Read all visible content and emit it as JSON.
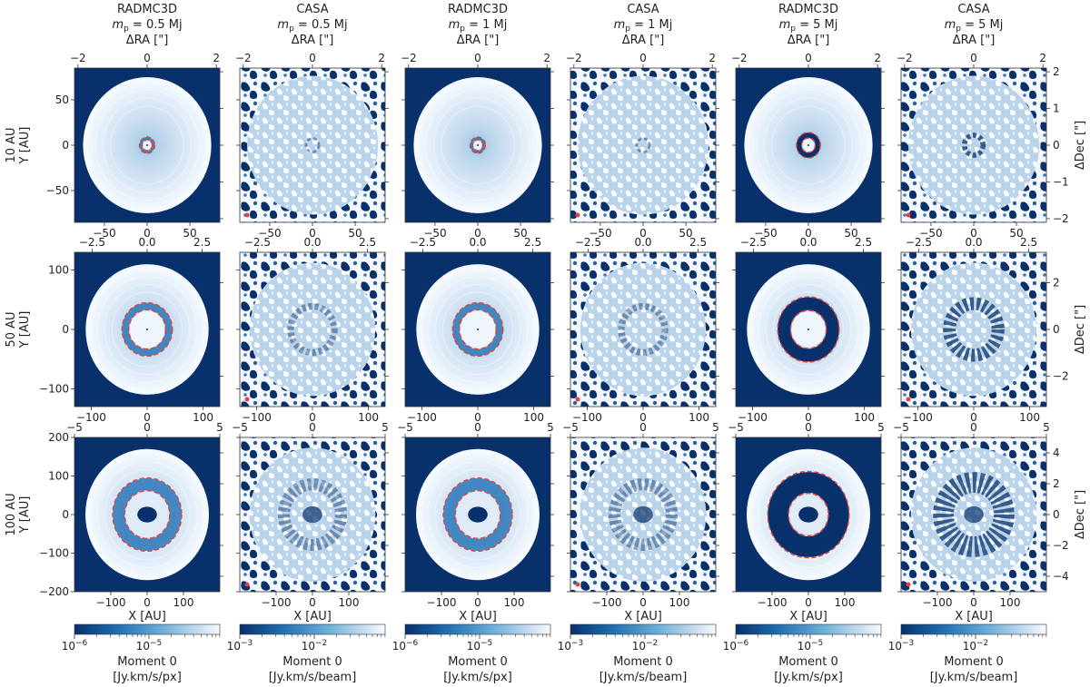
{
  "figure": {
    "colors": {
      "dark": "#08306b",
      "mid": "#2171b5",
      "light": "#c6dbef",
      "pale": "#f7fbff",
      "ring": "#e8413c"
    }
  },
  "columns": [
    {
      "code": "RADMC3D",
      "mass": "m_p = 0.5 Mj",
      "kind": "model",
      "colorbar_min": "10",
      "colorbar_min_exp": "−6",
      "colorbar_mid": "10",
      "colorbar_mid_exp": "−5",
      "colorbar_label": "Moment 0",
      "colorbar_unit": "[Jy.km/s/px]"
    },
    {
      "code": "CASA",
      "mass": "m_p = 0.5 Mj",
      "kind": "obs",
      "colorbar_min": "10",
      "colorbar_min_exp": "−3",
      "colorbar_mid": "10",
      "colorbar_mid_exp": "−2",
      "colorbar_label": "Moment 0",
      "colorbar_unit": "[Jy.km/s/beam]"
    },
    {
      "code": "RADMC3D",
      "mass": "m_p = 1 Mj",
      "kind": "model",
      "colorbar_min": "10",
      "colorbar_min_exp": "−6",
      "colorbar_mid": "10",
      "colorbar_mid_exp": "−5",
      "colorbar_label": "Moment 0",
      "colorbar_unit": "[Jy.km/s/px]"
    },
    {
      "code": "CASA",
      "mass": "m_p = 1 Mj",
      "kind": "obs",
      "colorbar_min": "10",
      "colorbar_min_exp": "−3",
      "colorbar_mid": "10",
      "colorbar_mid_exp": "−2",
      "colorbar_label": "Moment 0",
      "colorbar_unit": "[Jy.km/s/beam]"
    },
    {
      "code": "RADMC3D",
      "mass": "m_p = 5 Mj",
      "kind": "model",
      "colorbar_min": "10",
      "colorbar_min_exp": "−6",
      "colorbar_mid": "10",
      "colorbar_mid_exp": "−5",
      "colorbar_label": "Moment 0",
      "colorbar_unit": "[Jy.km/s/px]"
    },
    {
      "code": "CASA",
      "mass": "m_p = 5 Mj",
      "kind": "obs",
      "colorbar_min": "10",
      "colorbar_min_exp": "−3",
      "colorbar_mid": "10",
      "colorbar_mid_exp": "−2",
      "colorbar_label": "Moment 0",
      "colorbar_unit": "[Jy.km/s/beam]"
    }
  ],
  "rows": [
    {
      "label": "10 AU",
      "ylabel": "Y [AU]",
      "xlim_au": [
        -85,
        85
      ],
      "ylim_au": [
        -85,
        85
      ],
      "radec_lim_arcsec": [
        -2.1,
        2.1
      ],
      "x_ticks_au": [
        "−50",
        "0",
        "50"
      ],
      "y_ticks_au": [
        "50",
        "0",
        "−50"
      ],
      "radec_ticks": [
        "−2",
        "0",
        "2"
      ],
      "dec_ticks": [
        "2",
        "1",
        "0",
        "−1",
        "−2"
      ],
      "bottom_label": ""
    },
    {
      "label": "50 AU",
      "ylabel": "Y [AU]",
      "xlim_au": [
        -130,
        130
      ],
      "ylim_au": [
        -130,
        130
      ],
      "radec_lim_arcsec": [
        -3.3,
        3.3
      ],
      "x_ticks_au": [
        "−100",
        "0",
        "100"
      ],
      "y_ticks_au": [
        "100",
        "0",
        "−100"
      ],
      "radec_ticks": [
        "−2.5",
        "0.0",
        "2.5"
      ],
      "dec_ticks": [
        "2",
        "0",
        "−2"
      ],
      "bottom_label": ""
    },
    {
      "label": "100 AU",
      "ylabel": "Y [AU]",
      "xlim_au": [
        -200,
        200
      ],
      "ylim_au": [
        -200,
        200
      ],
      "radec_lim_arcsec": [
        -5,
        5
      ],
      "x_ticks_au": [
        "−100",
        "0",
        "100"
      ],
      "y_ticks_au": [
        "200",
        "100",
        "0",
        "−100",
        "−200"
      ],
      "radec_ticks": [
        "−5",
        "0",
        "5"
      ],
      "dec_ticks": [
        "4",
        "2",
        "0",
        "−2",
        "−4"
      ],
      "bottom_label": "X [AU]"
    }
  ],
  "axis_labels": {
    "top": "ΔRA [\"]",
    "right": "ΔDec [\"]"
  },
  "chart_data": {
    "type": "heatmap",
    "panels": 18,
    "grid": "3 rows × 6 columns",
    "rows": [
      "10 AU",
      "50 AU",
      "100 AU"
    ],
    "columns": [
      "RADMC3D m_p = 0.5 Mj",
      "CASA m_p = 0.5 Mj",
      "RADMC3D m_p = 1 Mj",
      "CASA m_p = 1 Mj",
      "RADMC3D m_p = 5 Mj",
      "CASA m_p = 5 Mj"
    ],
    "quantity": "Moment 0",
    "colorbar_model": {
      "unit": "Jy.km/s/px",
      "scale": "log",
      "range": [
        1e-06,
        4e-05
      ]
    },
    "colorbar_obs": {
      "unit": "Jy.km/s/beam",
      "scale": "log",
      "range": [
        0.001,
        0.04
      ]
    },
    "xlabel": "X [AU]",
    "ylabel": "Y [AU]",
    "top_axis": "ΔRA [\"]",
    "right_axis": "ΔDec [\"]",
    "disk_outer_radius_au": {
      "10 AU": 75,
      "50 AU": 110,
      "100 AU": 170
    },
    "planet_orbits_au": [
      10,
      50,
      100
    ],
    "gap_edges_au": {
      "10 AU": {
        "0.5 Mj": [
          6,
          9
        ],
        "1 Mj": [
          6,
          9
        ],
        "5 Mj": [
          8,
          14
        ]
      },
      "50 AU": {
        "0.5 Mj": [
          33,
          45
        ],
        "1 Mj": [
          33,
          45
        ],
        "5 Mj": [
          32,
          55
        ]
      },
      "100 AU": {
        "0.5 Mj": [
          62,
          95
        ],
        "1 Mj": [
          62,
          95
        ],
        "5 Mj": [
          55,
          112
        ]
      }
    },
    "inner_cavity_au": {
      "10 AU": 0,
      "50 AU": 0,
      "100 AU": 27
    }
  }
}
